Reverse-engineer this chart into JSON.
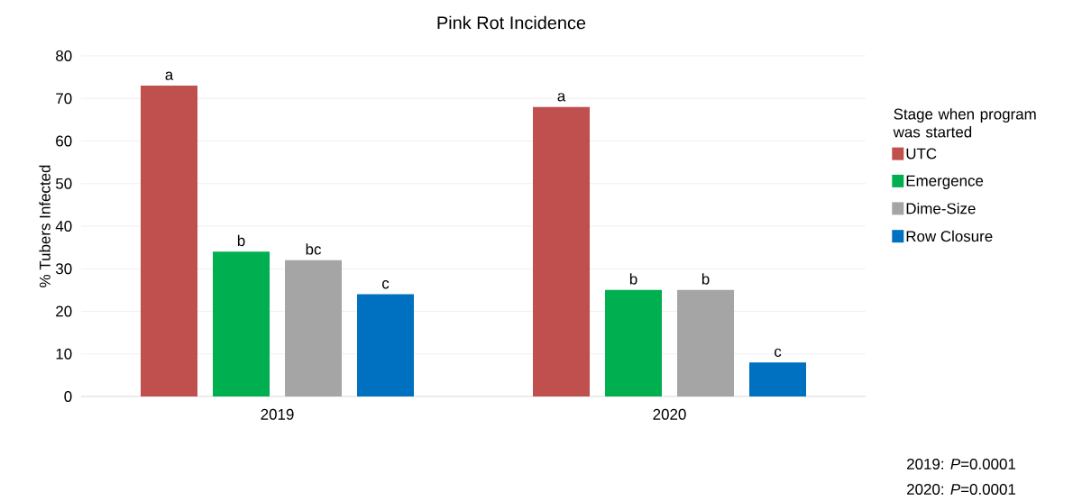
{
  "chart_data": {
    "type": "bar",
    "title": "Pink Rot Incidence",
    "ylabel": "% Tubers Infected",
    "legend_title": "Stage when program was started",
    "categories": [
      "2019",
      "2020"
    ],
    "series": [
      {
        "name": "UTC",
        "color": "#c0504d",
        "values": [
          73,
          68
        ]
      },
      {
        "name": "Emergence",
        "color": "#00b050",
        "values": [
          34,
          25
        ]
      },
      {
        "name": "Dime-Size",
        "color": "#a5a5a5",
        "values": [
          32,
          25
        ]
      },
      {
        "name": "Row Closure",
        "color": "#0070c0",
        "values": [
          24,
          8
        ]
      }
    ],
    "ylim": [
      0,
      80
    ],
    "yticks": [
      0,
      10,
      20,
      30,
      40,
      50,
      60,
      70,
      80
    ],
    "grid": "y",
    "legend": "right",
    "annotations": [
      "a",
      "b",
      "bc",
      "c",
      "a",
      "b",
      "b",
      "c",
      "2019: *P*=0.0001",
      "2020: *P*=0.0001"
    ]
  }
}
